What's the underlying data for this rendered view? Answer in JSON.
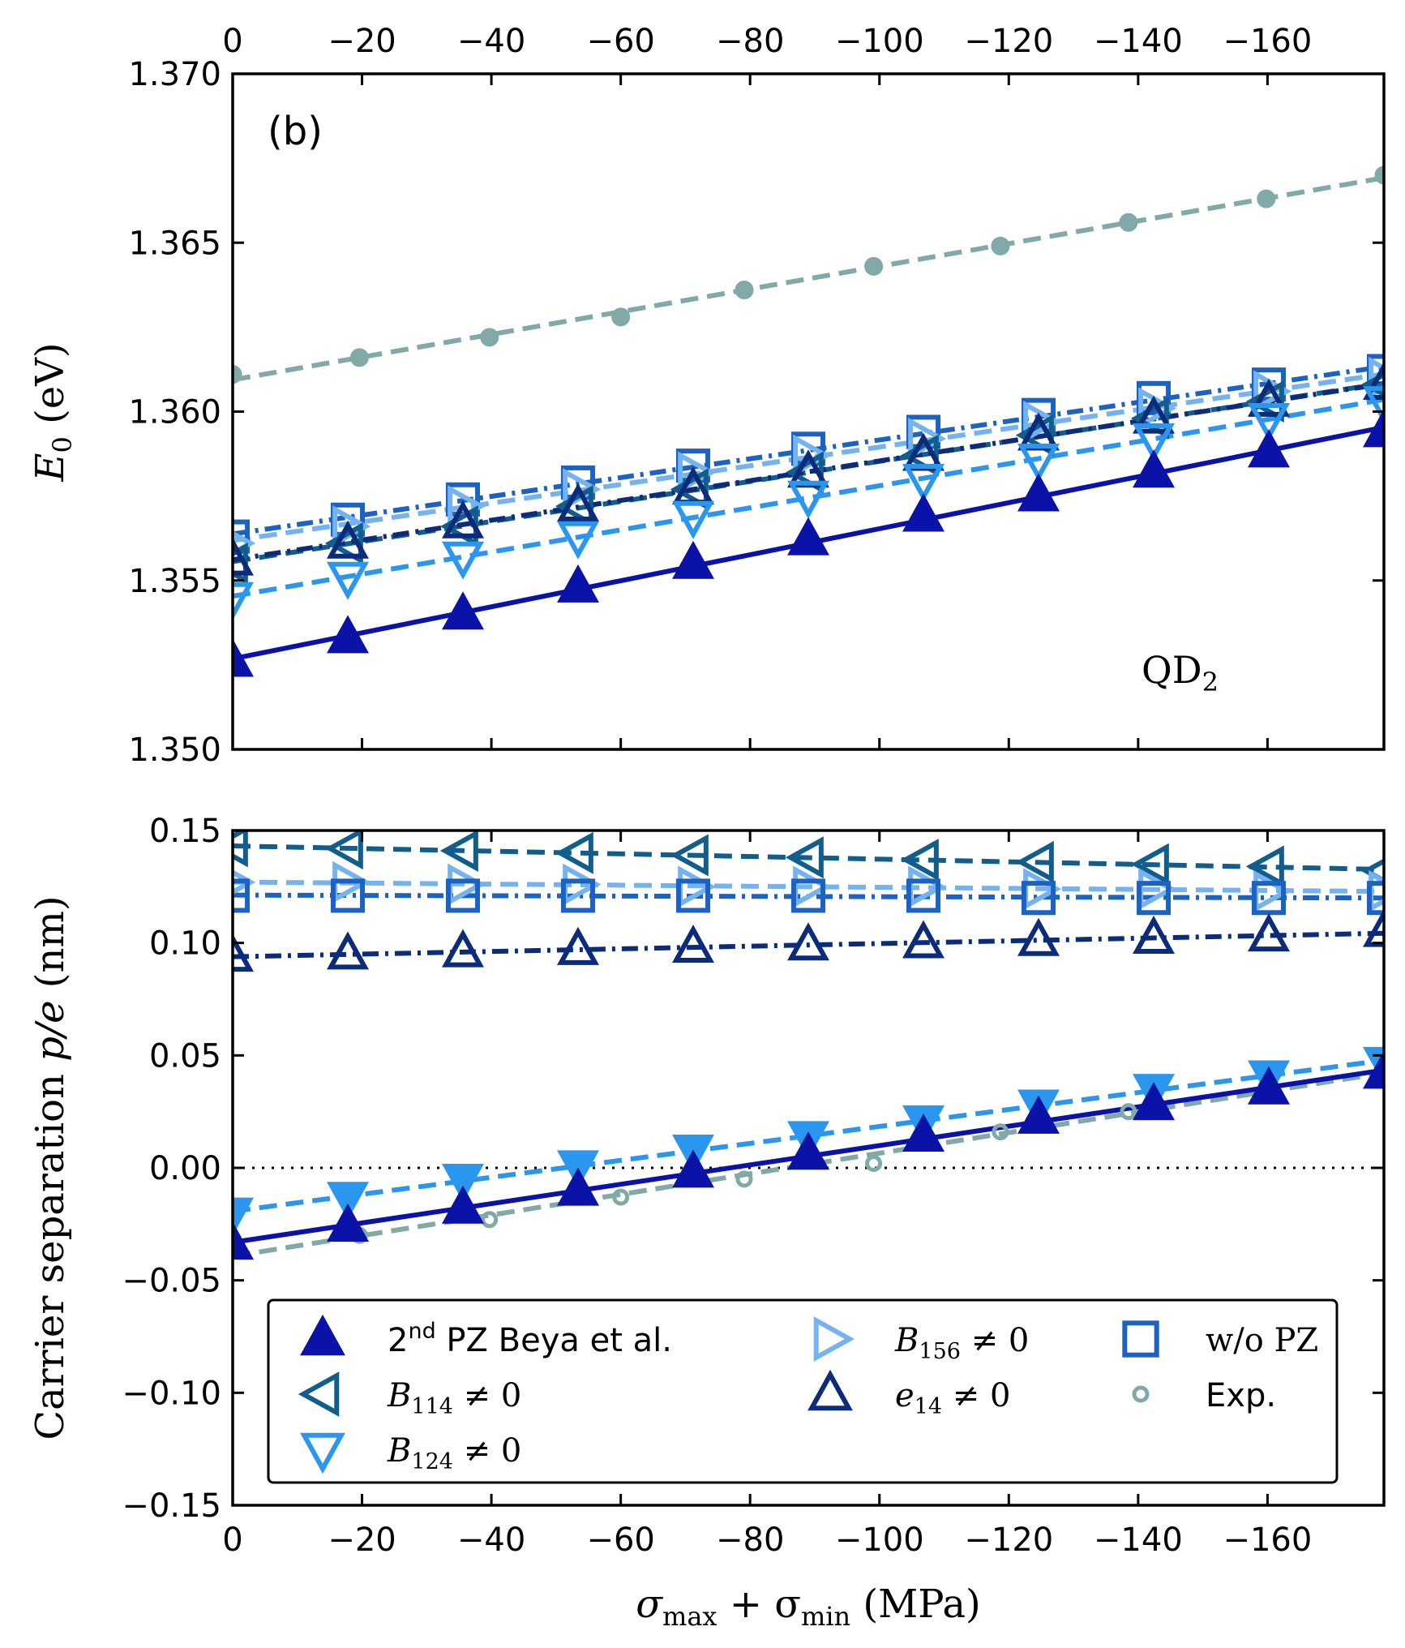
{
  "chart_data": [
    {
      "type": "scatter",
      "panel_label": "(b)",
      "annotation": "QD",
      "annotation_sub": "2",
      "ylabel_main": "E",
      "ylabel_sub": "0",
      "ylabel_unit": " (eV)",
      "xlim": [
        0,
        -178
      ],
      "ylim": [
        1.35,
        1.37
      ],
      "yticks": [
        1.35,
        1.355,
        1.36,
        1.365,
        1.37
      ],
      "ytick_labels": [
        "1.350",
        "1.355",
        "1.360",
        "1.365",
        "1.370"
      ],
      "xticks": [
        0,
        -20,
        -40,
        -60,
        -80,
        -100,
        -120,
        -140,
        -160
      ],
      "xtick_labels": [
        "0",
        "−20",
        "−40",
        "−60",
        "−80",
        "−100",
        "−120",
        "−140",
        "−160"
      ],
      "x_position": "top",
      "series": [
        {
          "key": "exp",
          "color": "#80a9a8",
          "marker": "circle",
          "fill": "#80a9a8",
          "line": "dashed",
          "x": [
            0,
            -19.6,
            -39.7,
            -60,
            -79.1,
            -99.1,
            -118.7,
            -138.5,
            -159.8,
            -178
          ],
          "values": [
            1.3611,
            1.3616,
            1.3622,
            1.3628,
            1.3636,
            1.3643,
            1.3649,
            1.3656,
            1.3663,
            1.367
          ]
        },
        {
          "key": "wopz",
          "color": "#1b62c2",
          "marker": "square",
          "fill": "none",
          "line": "dashdot",
          "x": [
            0,
            -17.8,
            -35.6,
            -53.4,
            -71.2,
            -89,
            -106.8,
            -124.6,
            -142.4,
            -160.2,
            -178
          ],
          "values": [
            1.3563,
            1.3568,
            1.3574,
            1.3579,
            1.3584,
            1.3589,
            1.3594,
            1.3599,
            1.3604,
            1.3608,
            1.3612
          ]
        },
        {
          "key": "b156",
          "color": "#74b3ef",
          "marker": "triangle-right",
          "fill": "none",
          "line": "dashed",
          "x": [
            0,
            -17.8,
            -35.6,
            -53.4,
            -71.2,
            -89,
            -106.8,
            -124.6,
            -142.4,
            -160.2,
            -178
          ],
          "values": [
            1.3561,
            1.3566,
            1.3572,
            1.3577,
            1.3582,
            1.3587,
            1.3592,
            1.3597,
            1.3601,
            1.3606,
            1.361
          ]
        },
        {
          "key": "b114",
          "color": "#115d8c",
          "marker": "triangle-left",
          "fill": "none",
          "line": "dashed",
          "x": [
            0,
            -17.8,
            -35.6,
            -53.4,
            -71.2,
            -89,
            -106.8,
            -124.6,
            -142.4,
            -160.2,
            -178
          ],
          "values": [
            1.3555,
            1.3561,
            1.3566,
            1.3572,
            1.3577,
            1.3582,
            1.3587,
            1.3593,
            1.3598,
            1.3603,
            1.3608
          ]
        },
        {
          "key": "e14",
          "color": "#0c2b7a",
          "marker": "triangle-up",
          "fill": "none",
          "line": "dashdot",
          "x": [
            0,
            -17.8,
            -35.6,
            -53.4,
            -71.2,
            -89,
            -106.8,
            -124.6,
            -142.4,
            -160.2,
            -178
          ],
          "values": [
            1.3556,
            1.3561,
            1.3567,
            1.3572,
            1.3577,
            1.3582,
            1.3587,
            1.3593,
            1.3598,
            1.3603,
            1.3608
          ]
        },
        {
          "key": "b124",
          "color": "#2b96ee",
          "marker": "triangle-down",
          "fill": "none",
          "line": "dashed",
          "x": [
            0,
            -17.8,
            -35.6,
            -53.4,
            -71.2,
            -89,
            -106.8,
            -124.6,
            -142.4,
            -160.2,
            -178
          ],
          "values": [
            1.3545,
            1.3551,
            1.3557,
            1.3563,
            1.3569,
            1.3575,
            1.358,
            1.3586,
            1.3592,
            1.3598,
            1.3603
          ]
        },
        {
          "key": "pz2",
          "color": "#0b12a8",
          "marker": "triangle-up",
          "fill": "#0b12a8",
          "line": "solid",
          "x": [
            0,
            -17.8,
            -35.6,
            -53.4,
            -71.2,
            -89,
            -106.8,
            -124.6,
            -142.4,
            -160.2,
            -178
          ],
          "values": [
            1.3526,
            1.3533,
            1.354,
            1.3548,
            1.3555,
            1.3562,
            1.3569,
            1.3575,
            1.3582,
            1.3588,
            1.3594
          ]
        }
      ]
    },
    {
      "type": "scatter",
      "ylabel": "Carrier separation ",
      "ylabel_math": "p/e",
      "ylabel_unit": " (nm)",
      "xlabel_a": "σ",
      "xlabel_a_sub": "max",
      "xlabel_plus": " + σ",
      "xlabel_b_sub": "min",
      "xlabel_unit": " (MPa)",
      "xlim": [
        0,
        -178
      ],
      "ylim": [
        -0.15,
        0.15
      ],
      "yticks": [
        -0.15,
        -0.1,
        -0.05,
        0.0,
        0.05,
        0.1,
        0.15
      ],
      "ytick_labels": [
        "−0.15",
        "−0.10",
        "−0.05",
        "0.00",
        "0.05",
        "0.10",
        "0.15"
      ],
      "xticks": [
        0,
        -20,
        -40,
        -60,
        -80,
        -100,
        -120,
        -140,
        -160
      ],
      "xtick_labels": [
        "0",
        "−20",
        "−40",
        "−60",
        "−80",
        "−100",
        "−120",
        "−140",
        "−160"
      ],
      "zero_line": true,
      "series": [
        {
          "key": "b114",
          "color": "#115d8c",
          "marker": "triangle-left",
          "fill": "none",
          "line": "dashed",
          "x": [
            0,
            -17.8,
            -35.6,
            -53.4,
            -71.2,
            -89,
            -106.8,
            -124.6,
            -142.4,
            -160.2,
            -178
          ],
          "values": [
            0.143,
            0.142,
            0.141,
            0.14,
            0.139,
            0.138,
            0.137,
            0.136,
            0.135,
            0.134,
            0.132
          ]
        },
        {
          "key": "b156",
          "color": "#74b3ef",
          "marker": "triangle-right",
          "fill": "none",
          "line": "dashed",
          "x": [
            0,
            -17.8,
            -35.6,
            -53.4,
            -71.2,
            -89,
            -106.8,
            -124.6,
            -142.4,
            -160.2,
            -178
          ],
          "values": [
            0.127,
            0.127,
            0.126,
            0.126,
            0.125,
            0.125,
            0.125,
            0.124,
            0.124,
            0.123,
            0.123
          ]
        },
        {
          "key": "wopz",
          "color": "#1b62c2",
          "marker": "square",
          "fill": "none",
          "line": "dashdot",
          "x": [
            0,
            -17.8,
            -35.6,
            -53.4,
            -71.2,
            -89,
            -106.8,
            -124.6,
            -142.4,
            -160.2,
            -178
          ],
          "values": [
            0.121,
            0.121,
            0.121,
            0.121,
            0.121,
            0.121,
            0.121,
            0.12,
            0.12,
            0.12,
            0.12
          ]
        },
        {
          "key": "e14",
          "color": "#0c2b7a",
          "marker": "triangle-up",
          "fill": "none",
          "line": "dashdot",
          "x": [
            0,
            -17.8,
            -35.6,
            -53.4,
            -71.2,
            -89,
            -106.8,
            -124.6,
            -142.4,
            -160.2,
            -178
          ],
          "values": [
            0.094,
            0.095,
            0.096,
            0.097,
            0.098,
            0.099,
            0.1,
            0.101,
            0.102,
            0.103,
            0.105
          ]
        },
        {
          "key": "exp",
          "color": "#80a9a8",
          "marker": "circle",
          "fill": "none",
          "line": "dashed",
          "x": [
            0,
            -19.6,
            -39.7,
            -60,
            -79.1,
            -99.1,
            -118.7,
            -138.5,
            -159.8,
            -178
          ],
          "values": [
            -0.035,
            -0.03,
            -0.023,
            -0.013,
            -0.005,
            0.002,
            0.016,
            0.025,
            0.036,
            0.043
          ]
        },
        {
          "key": "b124",
          "color": "#2b96ee",
          "marker": "triangle-down",
          "fill": "#2b96ee",
          "line": "dashed",
          "x": [
            0,
            -17.8,
            -35.6,
            -53.4,
            -71.2,
            -89,
            -106.8,
            -124.6,
            -142.4,
            -160.2,
            -178
          ],
          "values": [
            -0.02,
            -0.013,
            -0.005,
            0.001,
            0.008,
            0.014,
            0.021,
            0.028,
            0.035,
            0.041,
            0.047
          ]
        },
        {
          "key": "pz2",
          "color": "#0b12a8",
          "marker": "triangle-up",
          "fill": "#0b12a8",
          "line": "solid",
          "x": [
            0,
            -17.8,
            -35.6,
            -53.4,
            -71.2,
            -89,
            -106.8,
            -124.6,
            -142.4,
            -160.2,
            -178
          ],
          "values": [
            -0.034,
            -0.026,
            -0.018,
            -0.01,
            -0.002,
            0.006,
            0.014,
            0.022,
            0.028,
            0.035,
            0.042
          ]
        }
      ],
      "legend": {
        "location": "lower-left",
        "entries": [
          {
            "key": "pz2",
            "label_pre": "2",
            "label_sup": "nd",
            "label_post": " PZ Beya et al.",
            "style": "sans"
          },
          {
            "key": "b114",
            "label_var": "B",
            "label_sub": "114",
            "label_post": " ≠ 0",
            "style": "math"
          },
          {
            "key": "b124",
            "label_var": "B",
            "label_sub": "124",
            "label_post": " ≠ 0",
            "style": "math"
          },
          {
            "key": "b156",
            "label_var": "B",
            "label_sub": "156",
            "label_post": " ≠ 0",
            "style": "math"
          },
          {
            "key": "e14",
            "label_var": "e",
            "label_sub": "14",
            "label_post": " ≠ 0",
            "style": "math"
          },
          {
            "key": "wopz",
            "label_pre": "w/o PZ",
            "style": "serif"
          },
          {
            "key": "exp",
            "label_pre": "Exp.",
            "style": "sans"
          }
        ]
      }
    }
  ]
}
